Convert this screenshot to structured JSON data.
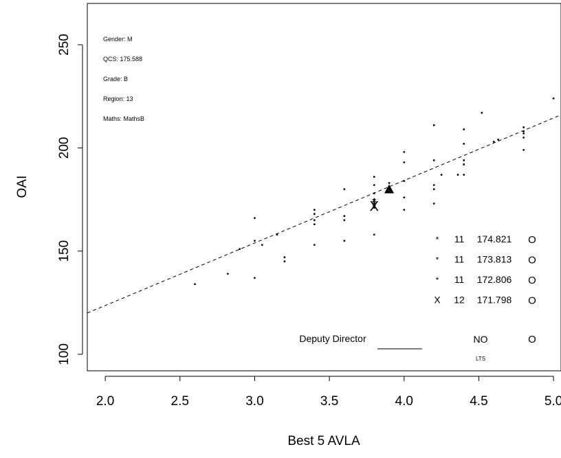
{
  "chart_data": {
    "type": "scatter",
    "xlabel": "Best 5 AVLA",
    "ylabel": "OAI",
    "xlim": [
      1.88,
      5.05
    ],
    "ylim": [
      92,
      270
    ],
    "x_ticks": [
      "2.0",
      "2.5",
      "3.0",
      "3.5",
      "4.0",
      "4.5",
      "5.0"
    ],
    "x_tick_values": [
      2.0,
      2.5,
      3.0,
      3.5,
      4.0,
      4.5,
      5.0
    ],
    "y_ticks": [
      "100",
      "150",
      "200",
      "250"
    ],
    "y_tick_values": [
      100,
      150,
      200,
      250
    ],
    "grid": false,
    "info_lines": [
      "Gender: M",
      "QCS: 175.588",
      "Grade: B",
      "Region: 13",
      "Maths: MathsB"
    ],
    "regression_line": {
      "style": "dashed",
      "x": [
        1.88,
        5.05
      ],
      "y": [
        120,
        216
      ]
    },
    "points": [
      {
        "x": 2.6,
        "y": 134
      },
      {
        "x": 2.82,
        "y": 139
      },
      {
        "x": 2.9,
        "y": 151
      },
      {
        "x": 3.0,
        "y": 137
      },
      {
        "x": 3.0,
        "y": 155
      },
      {
        "x": 3.0,
        "y": 166
      },
      {
        "x": 3.05,
        "y": 153
      },
      {
        "x": 3.15,
        "y": 158
      },
      {
        "x": 3.2,
        "y": 145
      },
      {
        "x": 3.2,
        "y": 147
      },
      {
        "x": 3.4,
        "y": 153
      },
      {
        "x": 3.4,
        "y": 163
      },
      {
        "x": 3.4,
        "y": 165
      },
      {
        "x": 3.4,
        "y": 168
      },
      {
        "x": 3.4,
        "y": 170
      },
      {
        "x": 3.6,
        "y": 155
      },
      {
        "x": 3.6,
        "y": 165
      },
      {
        "x": 3.6,
        "y": 167
      },
      {
        "x": 3.6,
        "y": 180
      },
      {
        "x": 3.8,
        "y": 158
      },
      {
        "x": 3.8,
        "y": 171
      },
      {
        "x": 3.8,
        "y": 175
      },
      {
        "x": 3.8,
        "y": 178
      },
      {
        "x": 3.8,
        "y": 182
      },
      {
        "x": 3.8,
        "y": 186
      },
      {
        "x": 3.9,
        "y": 183
      },
      {
        "x": 4.0,
        "y": 170
      },
      {
        "x": 4.0,
        "y": 176
      },
      {
        "x": 4.0,
        "y": 184
      },
      {
        "x": 4.0,
        "y": 193
      },
      {
        "x": 4.0,
        "y": 198
      },
      {
        "x": 4.2,
        "y": 173
      },
      {
        "x": 4.2,
        "y": 180
      },
      {
        "x": 4.2,
        "y": 182
      },
      {
        "x": 4.2,
        "y": 194
      },
      {
        "x": 4.2,
        "y": 211
      },
      {
        "x": 4.25,
        "y": 187
      },
      {
        "x": 4.36,
        "y": 187
      },
      {
        "x": 4.4,
        "y": 187
      },
      {
        "x": 4.4,
        "y": 192
      },
      {
        "x": 4.4,
        "y": 194
      },
      {
        "x": 4.4,
        "y": 202
      },
      {
        "x": 4.4,
        "y": 209
      },
      {
        "x": 4.52,
        "y": 217
      },
      {
        "x": 4.6,
        "y": 203
      },
      {
        "x": 4.63,
        "y": 204
      },
      {
        "x": 4.8,
        "y": 199
      },
      {
        "x": 4.8,
        "y": 205
      },
      {
        "x": 4.8,
        "y": 207
      },
      {
        "x": 4.8,
        "y": 208
      },
      {
        "x": 4.8,
        "y": 210
      },
      {
        "x": 5.0,
        "y": 224
      }
    ],
    "highlight_point": {
      "x": 3.9,
      "y": 180,
      "marker": "triangle"
    },
    "student_markers": [
      {
        "x": 3.8,
        "y": 174.821,
        "symbol": "*"
      },
      {
        "x": 3.8,
        "y": 173.813,
        "symbol": "*"
      },
      {
        "x": 3.8,
        "y": 172.806,
        "symbol": "*"
      },
      {
        "x": 3.8,
        "y": 171.798,
        "symbol": "X"
      }
    ],
    "legend_rows": [
      {
        "symbol": "*",
        "count": "11",
        "value": "174.821",
        "flag": "O"
      },
      {
        "symbol": "*",
        "count": "11",
        "value": "173.813",
        "flag": "O"
      },
      {
        "symbol": "*",
        "count": "11",
        "value": "172.806",
        "flag": "O"
      },
      {
        "symbol": "X",
        "count": "12",
        "value": "171.798",
        "flag": "O"
      }
    ],
    "footer_row": {
      "label": "Deputy Director",
      "status": "NO",
      "flag": "O",
      "sub": "LTS"
    }
  }
}
